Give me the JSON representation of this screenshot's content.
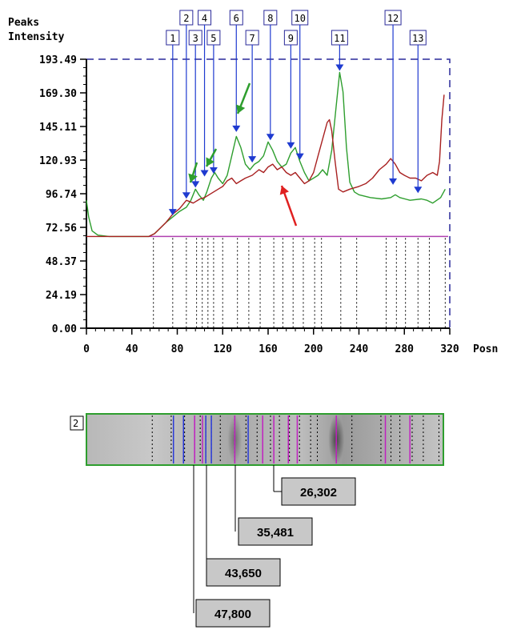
{
  "chart_data": {
    "type": "line",
    "title": "",
    "ylabel_line1": "Peaks",
    "ylabel_line2": "Intensity",
    "xlabel": "Posn",
    "xlim": [
      0,
      320
    ],
    "ylim": [
      0,
      193.49
    ],
    "x_ticks": [
      "0",
      "40",
      "80",
      "120",
      "160",
      "200",
      "240",
      "280",
      "320"
    ],
    "y_ticks": [
      "0.00",
      "24.19",
      "48.37",
      "72.56",
      "96.74",
      "120.93",
      "145.11",
      "169.30",
      "193.49"
    ],
    "baseline_y": 66,
    "band_positions": [
      59,
      76,
      88,
      97,
      102,
      107,
      112,
      120,
      133,
      143,
      153,
      165,
      173,
      182,
      191,
      201,
      207,
      224,
      238,
      264,
      273,
      281,
      292,
      302,
      316
    ],
    "series": [
      {
        "color": "#2e9e2e",
        "points": [
          [
            0,
            92
          ],
          [
            2,
            80
          ],
          [
            5,
            70
          ],
          [
            10,
            67
          ],
          [
            20,
            66
          ],
          [
            40,
            66
          ],
          [
            55,
            66
          ],
          [
            60,
            68
          ],
          [
            65,
            72
          ],
          [
            70,
            76
          ],
          [
            76,
            80
          ],
          [
            82,
            84
          ],
          [
            88,
            87
          ],
          [
            92,
            92
          ],
          [
            96,
            100
          ],
          [
            99,
            96
          ],
          [
            103,
            92
          ],
          [
            106,
            98
          ],
          [
            110,
            108
          ],
          [
            113,
            112
          ],
          [
            116,
            108
          ],
          [
            120,
            104
          ],
          [
            124,
            110
          ],
          [
            128,
            124
          ],
          [
            132,
            138
          ],
          [
            136,
            130
          ],
          [
            140,
            118
          ],
          [
            144,
            114
          ],
          [
            148,
            118
          ],
          [
            152,
            120
          ],
          [
            156,
            124
          ],
          [
            160,
            134
          ],
          [
            164,
            128
          ],
          [
            168,
            120
          ],
          [
            172,
            116
          ],
          [
            176,
            118
          ],
          [
            180,
            126
          ],
          [
            184,
            130
          ],
          [
            188,
            120
          ],
          [
            192,
            112
          ],
          [
            196,
            106
          ],
          [
            200,
            108
          ],
          [
            204,
            110
          ],
          [
            208,
            114
          ],
          [
            212,
            110
          ],
          [
            216,
            128
          ],
          [
            220,
            160
          ],
          [
            223,
            184
          ],
          [
            226,
            170
          ],
          [
            229,
            130
          ],
          [
            232,
            105
          ],
          [
            236,
            98
          ],
          [
            240,
            96
          ],
          [
            250,
            94
          ],
          [
            260,
            93
          ],
          [
            268,
            94
          ],
          [
            272,
            96
          ],
          [
            276,
            94
          ],
          [
            285,
            92
          ],
          [
            295,
            93
          ],
          [
            300,
            92
          ],
          [
            305,
            90
          ],
          [
            312,
            94
          ],
          [
            316,
            100
          ]
        ]
      },
      {
        "color": "#a82020",
        "points": [
          [
            0,
            66
          ],
          [
            20,
            66
          ],
          [
            40,
            66
          ],
          [
            55,
            66
          ],
          [
            60,
            68
          ],
          [
            70,
            76
          ],
          [
            76,
            82
          ],
          [
            82,
            86
          ],
          [
            88,
            92
          ],
          [
            94,
            90
          ],
          [
            100,
            93
          ],
          [
            104,
            94
          ],
          [
            108,
            96
          ],
          [
            112,
            98
          ],
          [
            116,
            100
          ],
          [
            120,
            102
          ],
          [
            124,
            106
          ],
          [
            128,
            108
          ],
          [
            132,
            104
          ],
          [
            136,
            106
          ],
          [
            140,
            108
          ],
          [
            146,
            110
          ],
          [
            152,
            114
          ],
          [
            156,
            112
          ],
          [
            160,
            116
          ],
          [
            164,
            118
          ],
          [
            168,
            114
          ],
          [
            172,
            116
          ],
          [
            176,
            112
          ],
          [
            180,
            110
          ],
          [
            184,
            112
          ],
          [
            188,
            108
          ],
          [
            192,
            104
          ],
          [
            196,
            106
          ],
          [
            200,
            112
          ],
          [
            204,
            124
          ],
          [
            208,
            136
          ],
          [
            212,
            148
          ],
          [
            214,
            150
          ],
          [
            216,
            142
          ],
          [
            219,
            120
          ],
          [
            222,
            100
          ],
          [
            226,
            98
          ],
          [
            232,
            100
          ],
          [
            240,
            102
          ],
          [
            246,
            104
          ],
          [
            252,
            108
          ],
          [
            258,
            114
          ],
          [
            264,
            118
          ],
          [
            268,
            122
          ],
          [
            272,
            118
          ],
          [
            276,
            112
          ],
          [
            280,
            110
          ],
          [
            285,
            108
          ],
          [
            290,
            108
          ],
          [
            295,
            106
          ],
          [
            300,
            110
          ],
          [
            305,
            112
          ],
          [
            309,
            110
          ],
          [
            311,
            120
          ],
          [
            313,
            150
          ],
          [
            315,
            168
          ]
        ]
      }
    ],
    "peaks": [
      {
        "label": "1",
        "x": 76,
        "y": 80
      },
      {
        "label": "2",
        "x": 88,
        "y": 92
      },
      {
        "label": "3",
        "x": 96,
        "y": 100
      },
      {
        "label": "4",
        "x": 104,
        "y": 108
      },
      {
        "label": "5",
        "x": 112,
        "y": 110
      },
      {
        "label": "6",
        "x": 132,
        "y": 140
      },
      {
        "label": "7",
        "x": 146,
        "y": 118
      },
      {
        "label": "8",
        "x": 162,
        "y": 134
      },
      {
        "label": "9",
        "x": 180,
        "y": 128
      },
      {
        "label": "10",
        "x": 188,
        "y": 120
      },
      {
        "label": "11",
        "x": 223,
        "y": 184
      },
      {
        "label": "12",
        "x": 270,
        "y": 102
      },
      {
        "label": "13",
        "x": 292,
        "y": 96
      }
    ]
  },
  "lane": {
    "label": "2",
    "blue_lines": [
      78,
      87,
      107,
      112,
      145
    ],
    "magenta_lines": [
      97,
      104,
      133,
      158,
      168,
      181,
      189,
      224,
      268,
      290
    ]
  },
  "band_values": [
    "26,302",
    "35,481",
    "43,650",
    "47,800"
  ]
}
